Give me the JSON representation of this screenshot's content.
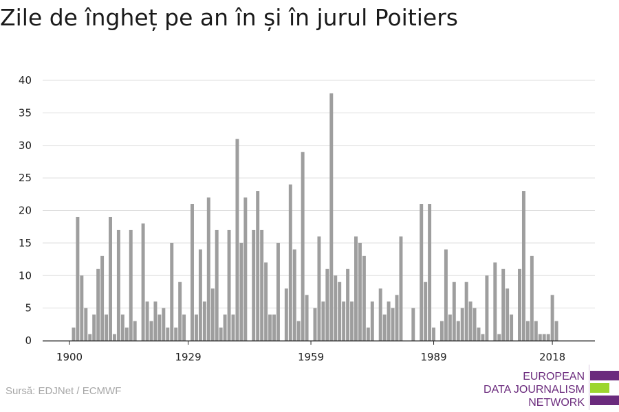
{
  "title": "Zile de îngheț pe an în și în jurul Poitiers",
  "source": "Sursă: EDJNet / ECMWF",
  "logo": {
    "lines": [
      "EUROPEAN",
      "DATA JOURNALISM",
      "NETWORK"
    ],
    "colors": {
      "purple": "#6b2b7d",
      "green": "#9cd62f"
    }
  },
  "colors": {
    "bar": "#9e9e9e",
    "grid": "#dddddd",
    "axis": "#222222",
    "text": "#222222"
  },
  "chart_data": {
    "type": "bar",
    "title": "Zile de îngheț pe an în și în jurul Poitiers",
    "xlabel": "",
    "ylabel": "",
    "ylim": [
      0,
      40
    ],
    "yticks": [
      0,
      5,
      10,
      15,
      20,
      25,
      30,
      35,
      40
    ],
    "xticks": [
      1900,
      1929,
      1959,
      1989,
      2018
    ],
    "x_start": 1900,
    "x_end": 2021,
    "grid": true,
    "x": [
      1900,
      1901,
      1902,
      1903,
      1904,
      1905,
      1906,
      1907,
      1908,
      1909,
      1910,
      1911,
      1912,
      1913,
      1914,
      1915,
      1916,
      1917,
      1918,
      1919,
      1920,
      1921,
      1922,
      1923,
      1924,
      1925,
      1926,
      1927,
      1928,
      1929,
      1930,
      1931,
      1932,
      1933,
      1934,
      1935,
      1936,
      1937,
      1938,
      1939,
      1940,
      1941,
      1942,
      1943,
      1944,
      1945,
      1946,
      1947,
      1948,
      1949,
      1950,
      1951,
      1952,
      1953,
      1954,
      1955,
      1956,
      1957,
      1958,
      1959,
      1960,
      1961,
      1962,
      1963,
      1964,
      1965,
      1966,
      1967,
      1968,
      1969,
      1970,
      1971,
      1972,
      1973,
      1974,
      1975,
      1976,
      1977,
      1978,
      1979,
      1980,
      1981,
      1982,
      1983,
      1984,
      1985,
      1986,
      1987,
      1988,
      1989,
      1990,
      1991,
      1992,
      1993,
      1994,
      1995,
      1996,
      1997,
      1998,
      1999,
      2000,
      2001,
      2002,
      2003,
      2004,
      2005,
      2006,
      2007,
      2008,
      2009,
      2010,
      2011,
      2012,
      2013,
      2014,
      2015,
      2016,
      2017,
      2018,
      2019,
      2020,
      2021
    ],
    "values": [
      0,
      2,
      19,
      10,
      5,
      1,
      4,
      11,
      13,
      4,
      19,
      1,
      17,
      4,
      2,
      17,
      3,
      0,
      18,
      6,
      3,
      6,
      4,
      5,
      2,
      15,
      2,
      9,
      4,
      0,
      21,
      4,
      14,
      6,
      22,
      8,
      17,
      2,
      4,
      17,
      4,
      31,
      15,
      22,
      0,
      17,
      23,
      17,
      12,
      4,
      4,
      15,
      0,
      8,
      24,
      14,
      3,
      29,
      7,
      0,
      5,
      16,
      6,
      11,
      38,
      10,
      9,
      6,
      11,
      6,
      16,
      15,
      13,
      2,
      6,
      0,
      8,
      4,
      6,
      5,
      7,
      16,
      0,
      0,
      5,
      0,
      21,
      9,
      21,
      2,
      0,
      3,
      14,
      4,
      9,
      3,
      5,
      9,
      6,
      5,
      2,
      1,
      10,
      0,
      12,
      1,
      11,
      8,
      4,
      0,
      11,
      23,
      3,
      13,
      3,
      1,
      1,
      1,
      7,
      3,
      0,
      0
    ]
  }
}
